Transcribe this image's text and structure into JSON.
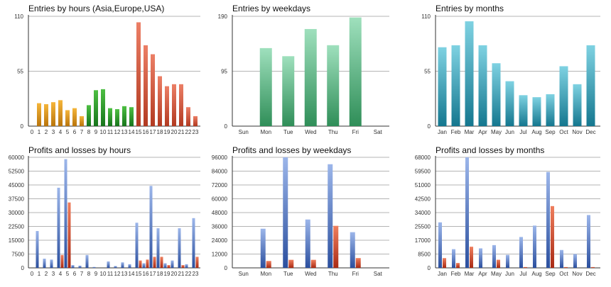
{
  "colors": {
    "grid": "#b4b4b4",
    "axis": "#333333",
    "asia_top": "#f5b53a",
    "asia_bottom": "#b9750c",
    "europe_top": "#4dbf42",
    "europe_bottom": "#17751c",
    "usa_top": "#ec7f66",
    "usa_bottom": "#b23a21",
    "green_top": "#9fe0bd",
    "green_bottom": "#2f8e58",
    "teal_top": "#7fd2e2",
    "teal_bottom": "#14778f",
    "profit_top": "#9cb6ea",
    "profit_bottom": "#2b4f9e",
    "loss_top": "#ef7f5e",
    "loss_bottom": "#a92a14"
  },
  "chart_data": [
    {
      "type": "bar",
      "title": "Entries by hours (Asia,Europe,USA)",
      "categories": [
        "0",
        "1",
        "2",
        "3",
        "4",
        "5",
        "6",
        "7",
        "8",
        "9",
        "10",
        "11",
        "12",
        "13",
        "14",
        "15",
        "16",
        "17",
        "18",
        "19",
        "20",
        "21",
        "22",
        "23"
      ],
      "values": [
        0,
        23,
        22,
        24,
        26,
        16,
        18,
        10,
        21,
        36,
        37,
        18,
        17,
        20,
        19,
        104,
        81,
        72,
        50,
        40,
        42,
        42,
        19,
        10
      ],
      "color_groups": [
        "asia",
        "asia",
        "asia",
        "asia",
        "asia",
        "asia",
        "asia",
        "asia",
        "europe",
        "europe",
        "europe",
        "europe",
        "europe",
        "europe",
        "europe",
        "usa",
        "usa",
        "usa",
        "usa",
        "usa",
        "usa",
        "usa",
        "usa",
        "usa"
      ],
      "ylim": [
        0,
        110
      ],
      "yticks": [
        "0",
        "55",
        "110"
      ],
      "grid": true
    },
    {
      "type": "bar",
      "title": "Entries by weekdays",
      "categories": [
        "Sun",
        "Mon",
        "Tue",
        "Wed",
        "Thu",
        "Fri",
        "Sat"
      ],
      "values": [
        0,
        135,
        121,
        168,
        140,
        188,
        0
      ],
      "ylim": [
        0,
        190
      ],
      "yticks": [
        "0",
        "95",
        "190"
      ],
      "grid": true
    },
    {
      "type": "bar",
      "title": "Entries by months",
      "categories": [
        "Jan",
        "Feb",
        "Mar",
        "Apr",
        "May",
        "Jun",
        "Jul",
        "Aug",
        "Sep",
        "Oct",
        "Nov",
        "Dec"
      ],
      "values": [
        79,
        81,
        105,
        81,
        63,
        45,
        31,
        29,
        32,
        60,
        42,
        81
      ],
      "ylim": [
        0,
        110
      ],
      "yticks": [
        "0",
        "55",
        "110"
      ],
      "grid": true
    },
    {
      "type": "bar",
      "title": "Profits and losses by hours",
      "categories": [
        "0",
        "1",
        "2",
        "3",
        "4",
        "5",
        "6",
        "7",
        "8",
        "9",
        "10",
        "11",
        "12",
        "13",
        "14",
        "15",
        "16",
        "17",
        "18",
        "19",
        "20",
        "21",
        "22",
        "23"
      ],
      "series": [
        {
          "values": [
            0,
            20000,
            5000,
            4500,
            43500,
            59000,
            1500,
            1200,
            7000,
            500,
            0,
            3500,
            1000,
            3000,
            2000,
            24500,
            2500,
            44500,
            21500,
            2500,
            4000,
            21500,
            2000,
            27000
          ]
        },
        {
          "values": [
            0,
            0,
            0,
            0,
            7000,
            35500,
            0,
            0,
            0,
            0,
            0,
            0,
            0,
            0,
            0,
            4000,
            4500,
            6000,
            6000,
            1500,
            0,
            1500,
            0,
            6000
          ]
        }
      ],
      "ylim": [
        0,
        60000
      ],
      "yticks": [
        "0",
        "7500",
        "15000",
        "22500",
        "30000",
        "37500",
        "45000",
        "52500",
        "60000"
      ],
      "grid": true
    },
    {
      "type": "bar",
      "title": "Profits and losses by weekdays",
      "categories": [
        "Sun",
        "Mon",
        "Tue",
        "Wed",
        "Thu",
        "Fri",
        "Sat"
      ],
      "series": [
        {
          "values": [
            0,
            34000,
            96000,
            42000,
            90000,
            31000,
            0
          ]
        },
        {
          "values": [
            0,
            6000,
            7000,
            7000,
            36500,
            8500,
            0
          ]
        }
      ],
      "ylim": [
        0,
        96000
      ],
      "yticks": [
        "0",
        "12000",
        "24000",
        "36000",
        "48000",
        "60000",
        "72000",
        "84000",
        "96000"
      ],
      "grid": true
    },
    {
      "type": "bar",
      "title": "Profits and losses by months",
      "categories": [
        "Jan",
        "Feb",
        "Mar",
        "Apr",
        "May",
        "Jun",
        "Jul",
        "Aug",
        "Sep",
        "Oct",
        "Nov",
        "Dec"
      ],
      "series": [
        {
          "values": [
            28000,
            11500,
            68000,
            12000,
            14000,
            8000,
            19000,
            26000,
            59000,
            11000,
            8500,
            32500
          ]
        },
        {
          "values": [
            6000,
            3000,
            13000,
            0,
            5000,
            0,
            500,
            0,
            38000,
            500,
            0,
            500
          ]
        }
      ],
      "ylim": [
        0,
        68000
      ],
      "yticks": [
        "0",
        "8500",
        "17000",
        "25500",
        "34000",
        "42500",
        "51000",
        "59500",
        "68000"
      ],
      "grid": true
    }
  ]
}
